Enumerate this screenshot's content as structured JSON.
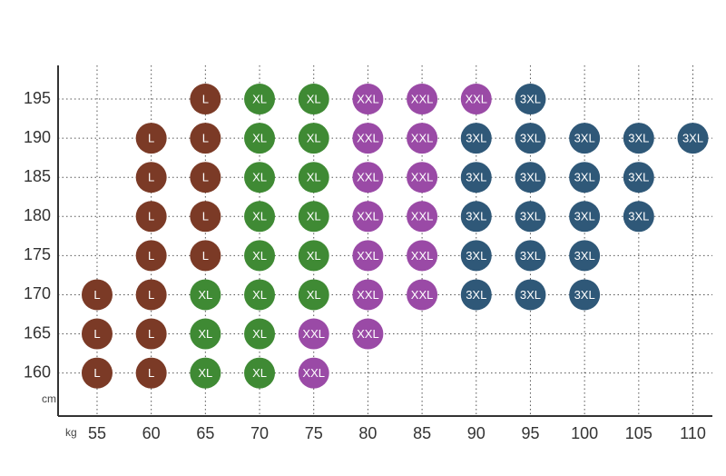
{
  "chart_data": {
    "type": "scatter",
    "x_unit": "kg",
    "y_unit": "cm",
    "xlim": [
      51.4,
      111.8
    ],
    "xticks": [
      55,
      60,
      65,
      70,
      75,
      80,
      85,
      90,
      95,
      100,
      105,
      110
    ],
    "ylim": [
      154.5,
      199.3
    ],
    "yticks": [
      160,
      165,
      170,
      175,
      180,
      185,
      190,
      195
    ],
    "grid": true,
    "series": [
      {
        "name": "L",
        "color": "#7b3a26",
        "x": [
          65,
          60,
          65,
          60,
          65,
          60,
          65,
          60,
          65,
          55,
          60,
          55,
          60,
          55,
          60
        ],
        "values": [
          195,
          190,
          190,
          185,
          185,
          180,
          180,
          175,
          175,
          170,
          170,
          165,
          165,
          160,
          160
        ]
      },
      {
        "name": "XL",
        "color": "#3f8a34",
        "x": [
          70,
          75,
          70,
          75,
          70,
          75,
          70,
          75,
          70,
          75,
          65,
          70,
          75,
          65,
          70,
          65,
          70
        ],
        "values": [
          195,
          195,
          190,
          190,
          185,
          185,
          180,
          180,
          175,
          175,
          170,
          170,
          170,
          165,
          165,
          160,
          160
        ]
      },
      {
        "name": "XXL",
        "color": "#9a4aa6",
        "x": [
          80,
          85,
          90,
          80,
          85,
          80,
          85,
          80,
          85,
          80,
          85,
          80,
          85,
          75,
          80,
          75
        ],
        "values": [
          195,
          195,
          195,
          190,
          190,
          185,
          185,
          180,
          180,
          175,
          175,
          170,
          170,
          165,
          165,
          160
        ]
      },
      {
        "name": "3XL",
        "color": "#2f5878",
        "x": [
          95,
          90,
          95,
          100,
          105,
          110,
          90,
          95,
          100,
          105,
          90,
          95,
          100,
          105,
          90,
          95,
          100,
          90,
          95,
          100
        ],
        "values": [
          195,
          190,
          190,
          190,
          190,
          190,
          185,
          185,
          185,
          185,
          180,
          180,
          180,
          180,
          175,
          175,
          175,
          170,
          170,
          170
        ]
      }
    ]
  }
}
